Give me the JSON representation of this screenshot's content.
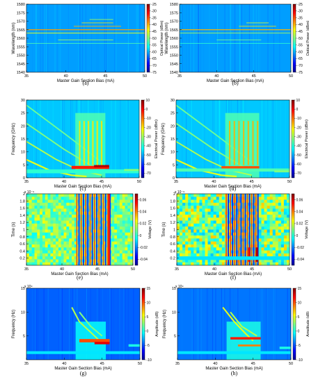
{
  "colors": {
    "colormap": [
      "#00008f",
      "#0000ff",
      "#0080ff",
      "#00ffff",
      "#80ff80",
      "#ffff00",
      "#ff8000",
      "#ff0000",
      "#800000"
    ],
    "field": "#1e64e6",
    "field_optical": "#1446dc"
  },
  "chart_data": [
    {
      "id": "a",
      "type": "heatmap",
      "subcaption": "(a)",
      "xlabel": "Master Gain Section Bias (mA)",
      "ylabel": "Wavelength (nm)",
      "xlim": [
        35,
        50
      ],
      "ylim": [
        1540,
        1580
      ],
      "xticks": [
        35,
        40,
        45,
        50
      ],
      "yticks": [
        1540,
        1545,
        1550,
        1555,
        1560,
        1565,
        1570,
        1575,
        1580
      ],
      "colorbar": {
        "label": "Optical Power (dBm)",
        "range": [
          -75,
          -25
        ],
        "ticks": [
          -25,
          -30,
          -35,
          -40,
          -45,
          -50,
          -55,
          -60,
          -65,
          -70,
          -75
        ]
      },
      "bg_fill": 0.28,
      "features": [
        {
          "kind": "hline",
          "y": 1565,
          "x": [
            35,
            50
          ],
          "value": 0.72,
          "width": 0.5
        },
        {
          "kind": "hline",
          "y": 1563,
          "x": [
            35,
            50
          ],
          "value": 0.6,
          "width": 0.4
        },
        {
          "kind": "hline",
          "y": 1567,
          "x": [
            41,
            47
          ],
          "value": 0.7,
          "width": 0.35
        },
        {
          "kind": "hline",
          "y": 1569,
          "x": [
            42,
            46
          ],
          "value": 0.65,
          "width": 0.3
        },
        {
          "kind": "hline",
          "y": 1559,
          "x": [
            39,
            46
          ],
          "value": 0.55,
          "width": 0.3
        },
        {
          "kind": "hline",
          "y": 1557,
          "x": [
            35,
            50
          ],
          "value": 0.45,
          "width": 0.25
        },
        {
          "kind": "hline",
          "y": 1571,
          "x": [
            43,
            46
          ],
          "value": 0.55,
          "width": 0.25
        }
      ]
    },
    {
      "id": "b",
      "type": "heatmap",
      "subcaption": "(b)",
      "xlabel": "Master Gain Section Bias (mA)",
      "ylabel": "Wavelength (nm)",
      "xlim": [
        35,
        50
      ],
      "ylim": [
        1540,
        1580
      ],
      "xticks": [
        35,
        40,
        45,
        50
      ],
      "yticks": [
        1540,
        1545,
        1550,
        1555,
        1560,
        1565,
        1570,
        1575,
        1580
      ],
      "colorbar": {
        "label": "Optical Power (dBm)",
        "range": [
          -75,
          -25
        ],
        "ticks": [
          -25,
          -30,
          -35,
          -40,
          -45,
          -50,
          -55,
          -60,
          -65,
          -70,
          -75
        ]
      },
      "bg_fill": 0.28,
      "features": [
        {
          "kind": "hline",
          "y": 1565,
          "x": [
            35,
            50
          ],
          "value": 0.7,
          "width": 0.5
        },
        {
          "kind": "hline",
          "y": 1563,
          "x": [
            35,
            50
          ],
          "value": 0.55,
          "width": 0.35
        },
        {
          "kind": "hline",
          "y": 1567,
          "x": [
            43,
            48
          ],
          "value": 0.65,
          "width": 0.3
        },
        {
          "kind": "hline",
          "y": 1569,
          "x": [
            44,
            47
          ],
          "value": 0.6,
          "width": 0.3
        },
        {
          "kind": "hline",
          "y": 1559,
          "x": [
            40,
            46
          ],
          "value": 0.5,
          "width": 0.25
        },
        {
          "kind": "hline",
          "y": 1557,
          "x": [
            35,
            50
          ],
          "value": 0.42,
          "width": 0.25
        }
      ]
    },
    {
      "id": "c",
      "type": "heatmap",
      "subcaption": "(c)",
      "xlabel": "Master Gain Section Bias (mA)",
      "ylabel": "Frequency (GHz)",
      "xlim": [
        35,
        50
      ],
      "ylim": [
        0,
        30
      ],
      "xticks": [
        35,
        40,
        45,
        50
      ],
      "yticks": [
        0,
        5,
        10,
        15,
        20,
        25,
        30
      ],
      "colorbar": {
        "label": "Electrical Power (dBm)",
        "range": [
          -75,
          10
        ],
        "ticks": [
          10,
          0,
          -10,
          -20,
          -30,
          -40,
          -50,
          -60,
          -70
        ]
      },
      "bg_fill": 0.32,
      "features": [
        {
          "kind": "band",
          "x": [
            41.5,
            45.5
          ],
          "y": [
            0,
            25
          ],
          "value": 0.45
        },
        {
          "kind": "curve",
          "points": [
            [
              35,
              7
            ],
            [
              38,
              3
            ],
            [
              41,
              1
            ],
            [
              43,
              0.5
            ]
          ],
          "value": 0.6,
          "width": 0.6
        },
        {
          "kind": "curve",
          "points": [
            [
              35,
              14
            ],
            [
              39,
              7
            ],
            [
              42,
              3
            ],
            [
              45,
              1
            ]
          ],
          "value": 0.55,
          "width": 0.5
        },
        {
          "kind": "curve",
          "points": [
            [
              35,
              21
            ],
            [
              40,
              11
            ],
            [
              44,
              4
            ]
          ],
          "value": 0.5,
          "width": 0.5
        },
        {
          "kind": "curve",
          "points": [
            [
              35,
              28
            ],
            [
              41,
              15
            ],
            [
              45,
              6
            ]
          ],
          "value": 0.48,
          "width": 0.5
        },
        {
          "kind": "hline",
          "y": 4,
          "x": [
            41,
            46
          ],
          "value": 0.85,
          "width": 1.2
        },
        {
          "kind": "hline",
          "y": 4.5,
          "x": [
            44,
            46
          ],
          "value": 0.95,
          "width": 0.9
        },
        {
          "kind": "hline",
          "y": 2.5,
          "x": [
            35,
            50
          ],
          "value": 0.42,
          "width": 1.5
        },
        {
          "kind": "stripes",
          "x": [
            42,
            45.5
          ],
          "y": [
            5,
            22
          ],
          "value": 0.65,
          "count": 12,
          "slope": 3
        },
        {
          "kind": "hline",
          "y": 3,
          "x": [
            48,
            50
          ],
          "value": 0.5,
          "width": 0.8
        }
      ]
    },
    {
      "id": "d",
      "type": "heatmap",
      "subcaption": "(d)",
      "xlabel": "Master Gain Section Bias (mA)",
      "ylabel": "Frequency (GHz)",
      "xlim": [
        35,
        50
      ],
      "ylim": [
        0,
        30
      ],
      "xticks": [
        35,
        40,
        45,
        50
      ],
      "yticks": [
        0,
        5,
        10,
        15,
        20,
        25,
        30
      ],
      "colorbar": {
        "label": "Electrical Power (dBm)",
        "range": [
          -75,
          10
        ],
        "ticks": [
          10,
          0,
          -10,
          -20,
          -30,
          -40,
          -50,
          -60,
          -70
        ]
      },
      "bg_fill": 0.32,
      "features": [
        {
          "kind": "band",
          "x": [
            41.5,
            46
          ],
          "y": [
            0,
            25
          ],
          "value": 0.45
        },
        {
          "kind": "curve",
          "points": [
            [
              35,
              7
            ],
            [
              38,
              3
            ],
            [
              41,
              1
            ],
            [
              43,
              0.5
            ]
          ],
          "value": 0.6,
          "width": 0.6
        },
        {
          "kind": "curve",
          "points": [
            [
              35,
              14
            ],
            [
              39,
              7
            ],
            [
              42,
              3
            ],
            [
              45,
              1
            ]
          ],
          "value": 0.55,
          "width": 0.5
        },
        {
          "kind": "curve",
          "points": [
            [
              35,
              21
            ],
            [
              40,
              11
            ],
            [
              44,
              4
            ]
          ],
          "value": 0.5,
          "width": 0.5
        },
        {
          "kind": "curve",
          "points": [
            [
              35,
              28
            ],
            [
              41,
              15
            ],
            [
              45,
              6
            ]
          ],
          "value": 0.48,
          "width": 0.5
        },
        {
          "kind": "hline",
          "y": 4,
          "x": [
            41,
            46
          ],
          "value": 0.8,
          "width": 1.0
        },
        {
          "kind": "hline",
          "y": 3,
          "x": [
            35,
            50
          ],
          "value": 0.45,
          "width": 1.2
        },
        {
          "kind": "stripes",
          "x": [
            42,
            46
          ],
          "y": [
            5,
            22
          ],
          "value": 0.7,
          "count": 13,
          "slope": 3
        },
        {
          "kind": "hline",
          "y": 2.5,
          "x": [
            48,
            50
          ],
          "value": 0.5,
          "width": 0.8
        }
      ]
    },
    {
      "id": "e",
      "type": "heatmap",
      "subcaption": "(e)",
      "xlabel": "Master Gain Section Bias (mA)",
      "ylabel": "Time (s)",
      "xlim": [
        35,
        50
      ],
      "ylim": [
        0,
        2
      ],
      "xticks": [
        35,
        40,
        45,
        50
      ],
      "yticks": [
        0.2,
        0.4,
        0.6,
        0.8,
        1,
        1.2,
        1.4,
        1.6,
        1.8,
        2
      ],
      "y_exponent": "x 10⁻⁹",
      "colorbar": {
        "label": "Voltage (V)",
        "range": [
          -0.05,
          0.07
        ],
        "ticks": [
          0.06,
          0.04,
          0.02,
          0,
          -0.02,
          -0.04
        ]
      },
      "bg_fill": 0.5,
      "features": [
        {
          "kind": "noise",
          "x": [
            35,
            50
          ],
          "y": [
            0,
            2
          ],
          "value": 0.5,
          "amp": 0.12
        },
        {
          "kind": "stripes",
          "x": [
            42,
            47
          ],
          "y": [
            0,
            2
          ],
          "value": 0.8,
          "count": 16,
          "slope": -0.35,
          "alt": 0.15
        },
        {
          "kind": "vline",
          "x": 43.5,
          "y": [
            0,
            2
          ],
          "value": 0.2,
          "width": 0.25
        },
        {
          "kind": "vline",
          "x": 46.5,
          "y": [
            0,
            2
          ],
          "value": 0.85,
          "width": 0.25
        }
      ]
    },
    {
      "id": "f",
      "type": "heatmap",
      "subcaption": "(f)",
      "xlabel": "Master Gain Section Bias (mA)",
      "ylabel": "Time (s)",
      "xlim": [
        35,
        50
      ],
      "ylim": [
        0,
        2
      ],
      "xticks": [
        35,
        40,
        45,
        50
      ],
      "yticks": [
        0.2,
        0.4,
        0.6,
        0.8,
        1,
        1.2,
        1.4,
        1.6,
        1.8,
        2
      ],
      "y_exponent": "x 10⁻⁹",
      "colorbar": {
        "label": "Voltage (V)",
        "range": [
          -0.05,
          0.07
        ],
        "ticks": [
          0.06,
          0.04,
          0.02,
          0,
          -0.02,
          -0.04
        ]
      },
      "bg_fill": 0.5,
      "features": [
        {
          "kind": "noise",
          "x": [
            35,
            50
          ],
          "y": [
            0,
            2
          ],
          "value": 0.5,
          "amp": 0.18
        },
        {
          "kind": "stripes",
          "x": [
            41.5,
            46
          ],
          "y": [
            0,
            2
          ],
          "value": 0.82,
          "count": 16,
          "slope": -0.35,
          "alt": 0.12
        },
        {
          "kind": "vline",
          "x": 44.5,
          "y": [
            0.1,
            0.5
          ],
          "value": 0.9,
          "width": 0.3
        },
        {
          "kind": "vline",
          "x": 45.5,
          "y": [
            0.1,
            0.5
          ],
          "value": 0.95,
          "width": 0.3
        },
        {
          "kind": "hline",
          "y": 0.2,
          "x": [
            35,
            50
          ],
          "value": 0.35,
          "width": 0.1
        }
      ]
    },
    {
      "id": "g",
      "type": "heatmap",
      "subcaption": "(g)",
      "xlabel": "Master Gain Section Bias (mA)",
      "ylabel": "Frequency (Hz)",
      "xlim": [
        35,
        50
      ],
      "ylim": [
        0,
        15
      ],
      "xticks": [
        35,
        40,
        45,
        50
      ],
      "yticks": [
        5,
        10,
        15
      ],
      "y_exponent": "x 10⁹",
      "colorbar": {
        "label": "Amplitude (dB)",
        "range": [
          -10,
          15
        ],
        "ticks": [
          15,
          10,
          5,
          0,
          -5,
          -10
        ]
      },
      "bg_fill": 0.22,
      "features": [
        {
          "kind": "band",
          "x": [
            41.5,
            45.5
          ],
          "y": [
            0,
            8
          ],
          "value": 0.38
        },
        {
          "kind": "curve",
          "points": [
            [
              41,
              11
            ],
            [
              42,
              8
            ],
            [
              44,
              5
            ],
            [
              45,
              3.5
            ]
          ],
          "value": 0.55,
          "width": 0.3
        },
        {
          "kind": "curve",
          "points": [
            [
              42,
              10
            ],
            [
              43.5,
              7
            ],
            [
              45,
              5
            ]
          ],
          "value": 0.5,
          "width": 0.3
        },
        {
          "kind": "hline",
          "y": 4,
          "x": [
            42,
            46
          ],
          "value": 0.8,
          "width": 0.7
        },
        {
          "kind": "hline",
          "y": 3.5,
          "x": [
            44,
            46
          ],
          "value": 0.9,
          "width": 0.5
        },
        {
          "kind": "hline",
          "y": 1.5,
          "x": [
            35,
            50
          ],
          "value": 0.35,
          "width": 0.6
        },
        {
          "kind": "hline",
          "y": 3,
          "x": [
            48.5,
            50
          ],
          "value": 0.4,
          "width": 0.5
        }
      ]
    },
    {
      "id": "h",
      "type": "heatmap",
      "subcaption": "(h)",
      "xlabel": "Master Gain Section Bias (mA)",
      "ylabel": "Frequency (Hz)",
      "xlim": [
        35,
        50
      ],
      "ylim": [
        0,
        15
      ],
      "xticks": [
        35,
        40,
        45,
        50
      ],
      "yticks": [
        5,
        10,
        15
      ],
      "y_exponent": "x 10⁹",
      "colorbar": {
        "label": "Amplitude (dB)",
        "range": [
          -10,
          15
        ],
        "ticks": [
          15,
          10,
          5,
          0,
          -5,
          -10
        ]
      },
      "bg_fill": 0.24,
      "features": [
        {
          "kind": "band",
          "x": [
            41.5,
            46
          ],
          "y": [
            0,
            8
          ],
          "value": 0.4
        },
        {
          "kind": "curve",
          "points": [
            [
              41,
              11
            ],
            [
              42.5,
              8
            ],
            [
              44,
              5.5
            ],
            [
              45,
              4
            ]
          ],
          "value": 0.6,
          "width": 0.3
        },
        {
          "kind": "curve",
          "points": [
            [
              42,
              10
            ],
            [
              43.5,
              7
            ],
            [
              45.5,
              5
            ]
          ],
          "value": 0.55,
          "width": 0.3
        },
        {
          "kind": "hline",
          "y": 4.5,
          "x": [
            42,
            46
          ],
          "value": 0.85,
          "width": 0.5
        },
        {
          "kind": "hline",
          "y": 3,
          "x": [
            43,
            46
          ],
          "value": 0.75,
          "width": 0.4
        },
        {
          "kind": "hline",
          "y": 1.5,
          "x": [
            35,
            50
          ],
          "value": 0.35,
          "width": 0.6
        },
        {
          "kind": "hline",
          "y": 2.5,
          "x": [
            48.5,
            50
          ],
          "value": 0.4,
          "width": 0.5
        }
      ]
    }
  ]
}
